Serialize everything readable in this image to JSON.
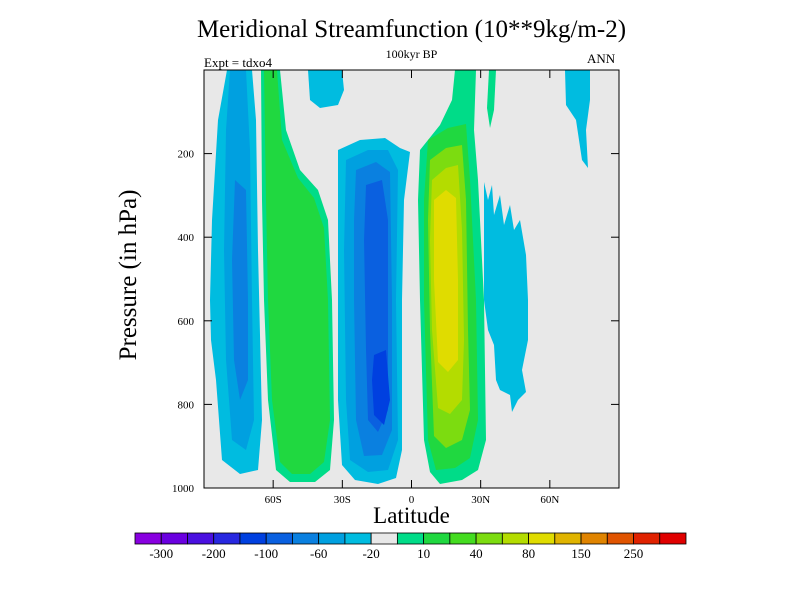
{
  "title": "Meridional Streamfunction (10**9kg/m-2)",
  "subtitle": "100kyr BP",
  "expt_label": "Expt = tdxo4",
  "season": "ANN",
  "chart_data": {
    "type": "contour",
    "title": "Meridional Streamfunction (10**9kg/m-2)",
    "subtitle": "100kyr BP",
    "xlabel": "Latitude",
    "ylabel": "Pressure (in hPa)",
    "x_ticks": [
      "60S",
      "30S",
      "0",
      "30N",
      "60N"
    ],
    "y_ticks": [
      "200",
      "400",
      "600",
      "800",
      "1000"
    ],
    "xlim": [
      -90,
      90
    ],
    "ylim": [
      1000,
      0
    ],
    "y_reversed": true,
    "background_color": "#e8e8e8",
    "contour_levels": [
      -300,
      -250,
      -200,
      -150,
      -100,
      -80,
      -60,
      -40,
      -20,
      -10,
      10,
      20,
      40,
      60,
      80,
      100,
      150,
      200,
      250,
      300
    ],
    "colorbar_labels": [
      "-300",
      "-200",
      "-100",
      "-60",
      "-20",
      "10",
      "40",
      "80",
      "150",
      "250"
    ],
    "colorbar_colors": [
      "#8800e0",
      "#6a00e0",
      "#4a10e0",
      "#2828e0",
      "#0040e0",
      "#0a60e0",
      "#0a80e0",
      "#00a0e0",
      "#00bce0",
      "#e8e8e8",
      "#00dc88",
      "#20d840",
      "#44dc20",
      "#7cdc10",
      "#b4dc00",
      "#e0dc00",
      "#e0b400",
      "#e08400",
      "#e05400",
      "#e02200",
      "#e00000"
    ],
    "features": [
      {
        "name": "southern-high-lat-negative-cell",
        "center_lat": -65,
        "peak_pressure": 600,
        "min_value": -60
      },
      {
        "name": "southern-mid-lat-positive-cell",
        "center_lat": -50,
        "peak_pressure": 600,
        "max_value": 40
      },
      {
        "name": "southern-hadley-negative-cell",
        "center_lat": -15,
        "peak_pressure": 750,
        "min_value": -100
      },
      {
        "name": "northern-hadley-positive-cell",
        "center_lat": 10,
        "peak_pressure": 500,
        "max_value": 80
      },
      {
        "name": "northern-mid-lat-negative-cell",
        "center_lat": 40,
        "peak_pressure": 500,
        "min_value": -20
      }
    ]
  }
}
